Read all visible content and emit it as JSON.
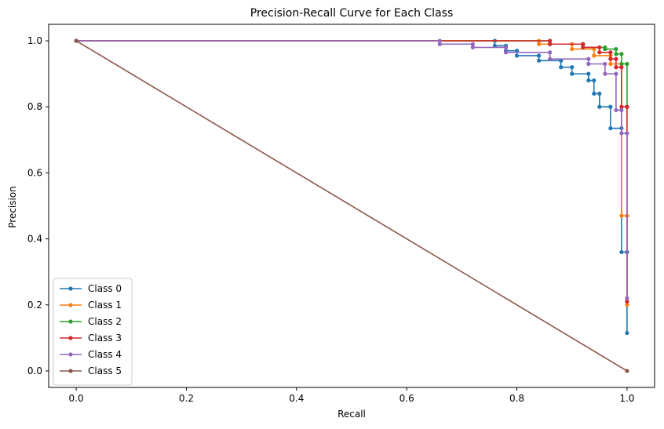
{
  "chart_data": {
    "type": "line",
    "title": "Precision-Recall Curve for Each Class",
    "xlabel": "Recall",
    "ylabel": "Precision",
    "xlim": [
      -0.05,
      1.05
    ],
    "ylim": [
      -0.05,
      1.05
    ],
    "xticks": [
      "0.0",
      "0.2",
      "0.4",
      "0.6",
      "0.8",
      "1.0"
    ],
    "yticks": [
      "0.0",
      "0.2",
      "0.4",
      "0.6",
      "0.8",
      "1.0"
    ],
    "grid": false,
    "legend_position": "lower-left",
    "series": [
      {
        "name": "Class 0",
        "color": "#1f77b4",
        "recall": [
          0.0,
          0.76,
          0.76,
          0.78,
          0.78,
          0.8,
          0.8,
          0.84,
          0.84,
          0.88,
          0.88,
          0.9,
          0.9,
          0.93,
          0.93,
          0.94,
          0.94,
          0.95,
          0.95,
          0.97,
          0.97,
          0.99,
          0.99,
          1.0,
          1.0
        ],
        "precision": [
          1.0,
          1.0,
          0.985,
          0.985,
          0.97,
          0.97,
          0.955,
          0.955,
          0.94,
          0.94,
          0.92,
          0.92,
          0.9,
          0.9,
          0.88,
          0.88,
          0.84,
          0.84,
          0.8,
          0.8,
          0.735,
          0.735,
          0.36,
          0.36,
          0.115
        ]
      },
      {
        "name": "Class 1",
        "color": "#ff7f0e",
        "recall": [
          0.0,
          0.84,
          0.84,
          0.9,
          0.9,
          0.94,
          0.94,
          0.97,
          0.97,
          0.99,
          0.99,
          1.0,
          1.0
        ],
        "precision": [
          1.0,
          1.0,
          0.99,
          0.99,
          0.975,
          0.975,
          0.955,
          0.955,
          0.93,
          0.93,
          0.47,
          0.47,
          0.2
        ]
      },
      {
        "name": "Class 2",
        "color": "#2ca02c",
        "recall": [
          0.0,
          0.86,
          0.86,
          0.92,
          0.92,
          0.96,
          0.96,
          0.98,
          0.98,
          0.99,
          0.99,
          1.0,
          1.0
        ],
        "precision": [
          1.0,
          1.0,
          0.99,
          0.99,
          0.98,
          0.98,
          0.975,
          0.975,
          0.96,
          0.96,
          0.93,
          0.93,
          0.8
        ]
      },
      {
        "name": "Class 3",
        "color": "#d62728",
        "recall": [
          0.0,
          0.86,
          0.86,
          0.92,
          0.92,
          0.95,
          0.95,
          0.97,
          0.97,
          0.98,
          0.98,
          0.99,
          0.99,
          1.0,
          1.0
        ],
        "precision": [
          1.0,
          1.0,
          0.99,
          0.99,
          0.98,
          0.98,
          0.965,
          0.965,
          0.945,
          0.945,
          0.92,
          0.92,
          0.8,
          0.8,
          0.21
        ]
      },
      {
        "name": "Class 4",
        "color": "#9467bd",
        "recall": [
          0.0,
          0.66,
          0.66,
          0.72,
          0.72,
          0.78,
          0.78,
          0.86,
          0.86,
          0.93,
          0.93,
          0.96,
          0.96,
          0.98,
          0.98,
          0.99,
          0.99,
          1.0,
          1.0
        ],
        "precision": [
          1.0,
          1.0,
          0.99,
          0.99,
          0.98,
          0.98,
          0.965,
          0.965,
          0.945,
          0.945,
          0.93,
          0.93,
          0.9,
          0.9,
          0.79,
          0.79,
          0.72,
          0.72,
          0.22
        ]
      },
      {
        "name": "Class 5",
        "color": "#8c564b",
        "recall": [
          0.0,
          1.0
        ],
        "precision": [
          1.0,
          0.0
        ]
      }
    ]
  }
}
